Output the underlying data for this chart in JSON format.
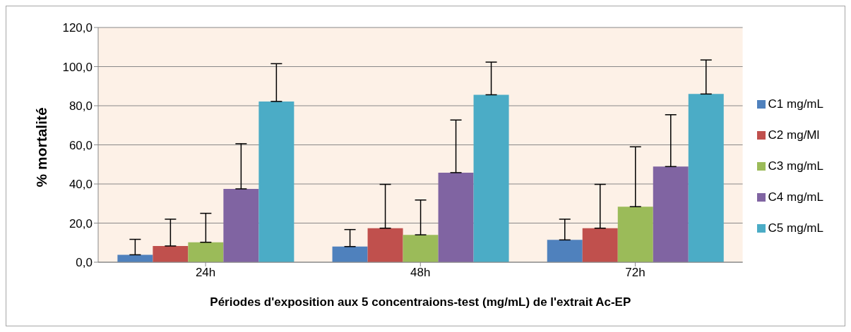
{
  "chart_data": {
    "type": "bar",
    "xlabel": "Périodes d'exposition aux 5 concentraions-test (mg/mL) de l'extrait Ac-EP",
    "ylabel": "% mortalité",
    "categories": [
      "24h",
      "48h",
      "72h"
    ],
    "series": [
      {
        "name": "C1 mg/mL",
        "color": "#4f81bd",
        "values": [
          3.8,
          8.0,
          11.4
        ],
        "errors": [
          [
            3.8,
            11.7
          ],
          [
            8.0,
            16.7
          ],
          [
            11.4,
            22.0
          ]
        ]
      },
      {
        "name": "C2 mg/Ml",
        "color": "#c0504d",
        "values": [
          8.3,
          17.4,
          17.4
        ],
        "errors": [
          [
            8.3,
            22.0
          ],
          [
            17.4,
            39.8
          ],
          [
            17.4,
            39.8
          ]
        ]
      },
      {
        "name": "C3 mg/mL",
        "color": "#9bbb59",
        "values": [
          10.2,
          14.0,
          28.4
        ],
        "errors": [
          [
            10.2,
            25.0
          ],
          [
            14.0,
            31.8
          ],
          [
            28.4,
            59.0
          ]
        ]
      },
      {
        "name": "C4 mg/mL",
        "color": "#8064a2",
        "values": [
          37.5,
          45.8,
          48.9
        ],
        "errors": [
          [
            37.5,
            60.6
          ],
          [
            45.8,
            72.7
          ],
          [
            48.9,
            75.4
          ]
        ]
      },
      {
        "name": "C5 mg/mL",
        "color": "#4bacc6",
        "values": [
          82.2,
          85.6,
          86.0
        ],
        "errors": [
          [
            82.2,
            101.5
          ],
          [
            85.6,
            102.3
          ],
          [
            86.0,
            103.4
          ]
        ]
      }
    ],
    "ylim": [
      0,
      120
    ],
    "yticks": [
      {
        "value": 0,
        "label": "0,0"
      },
      {
        "value": 20,
        "label": "20,0"
      },
      {
        "value": 40,
        "label": "40,0"
      },
      {
        "value": 60,
        "label": "60,0"
      },
      {
        "value": 80,
        "label": "80,0"
      },
      {
        "value": 100,
        "label": "100,0"
      },
      {
        "value": 120,
        "label": "120,0"
      }
    ],
    "grid": "y",
    "legend": "right"
  }
}
